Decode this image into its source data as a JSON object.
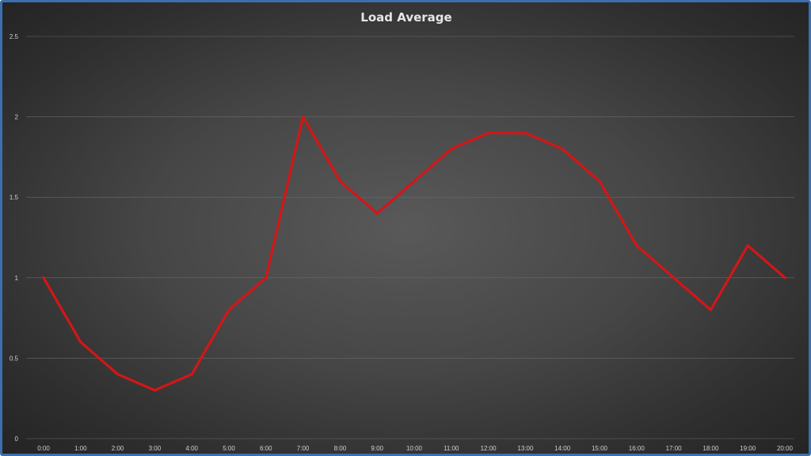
{
  "chart_data": {
    "type": "line",
    "title": "Load Average",
    "xlabel": "",
    "ylabel": "",
    "categories": [
      "0:00",
      "1:00",
      "2:00",
      "3:00",
      "4:00",
      "5:00",
      "6:00",
      "7:00",
      "8:00",
      "9:00",
      "10:00",
      "11:00",
      "12:00",
      "13:00",
      "14:00",
      "15:00",
      "16:00",
      "17:00",
      "18:00",
      "19:00",
      "20:00"
    ],
    "series": [
      {
        "values": [
          1.0,
          0.6,
          0.4,
          0.3,
          0.4,
          0.8,
          1.0,
          2.0,
          1.6,
          1.4,
          1.6,
          1.8,
          1.9,
          1.9,
          1.8,
          1.6,
          1.2,
          1.0,
          0.8,
          1.2,
          1.0
        ]
      }
    ],
    "ylim": [
      0,
      2.5
    ],
    "yticks": [
      "0",
      "0.5",
      "1",
      "1.5",
      "2",
      "2.5"
    ],
    "grid": true,
    "legend": "none"
  },
  "colors": {
    "line": "#d41616",
    "frame_border": "#3a6fb0"
  }
}
